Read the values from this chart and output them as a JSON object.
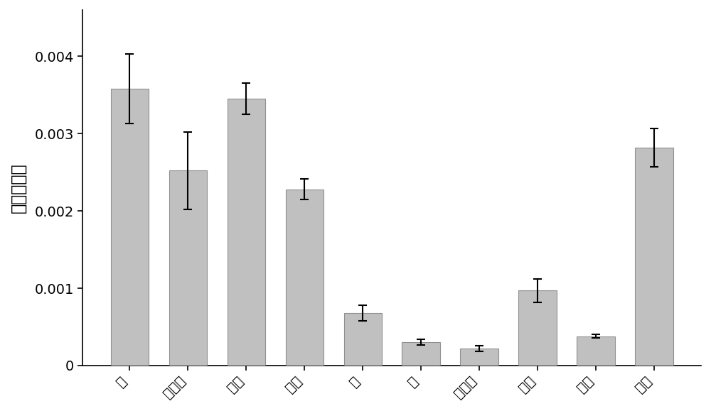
{
  "categories": [
    "头",
    "脂肪体",
    "中肠",
    "丝腔",
    "皮",
    "血",
    "马氏管",
    "气管",
    "卵巢",
    "精巫"
  ],
  "values": [
    0.00358,
    0.00252,
    0.00345,
    0.00228,
    0.00068,
    0.0003,
    0.00022,
    0.00097,
    0.00038,
    0.00282
  ],
  "errors": [
    0.00045,
    0.0005,
    0.0002,
    0.00013,
    0.0001,
    3.5e-05,
    3.5e-05,
    0.00015,
    2.5e-05,
    0.00025
  ],
  "bar_color": "#C0C0C0",
  "bar_edgecolor": "#909090",
  "error_color": "black",
  "ylabel": "相对表达量",
  "ylim": [
    0,
    0.0046
  ],
  "yticks": [
    0,
    0.001,
    0.002,
    0.003,
    0.004
  ],
  "ylabel_fontsize": 17,
  "tick_fontsize": 14,
  "bar_width": 0.65,
  "figure_width": 10.0,
  "figure_height": 5.79,
  "background_color": "#ffffff",
  "elinewidth": 1.5,
  "capsize": 4,
  "capthick": 1.5
}
